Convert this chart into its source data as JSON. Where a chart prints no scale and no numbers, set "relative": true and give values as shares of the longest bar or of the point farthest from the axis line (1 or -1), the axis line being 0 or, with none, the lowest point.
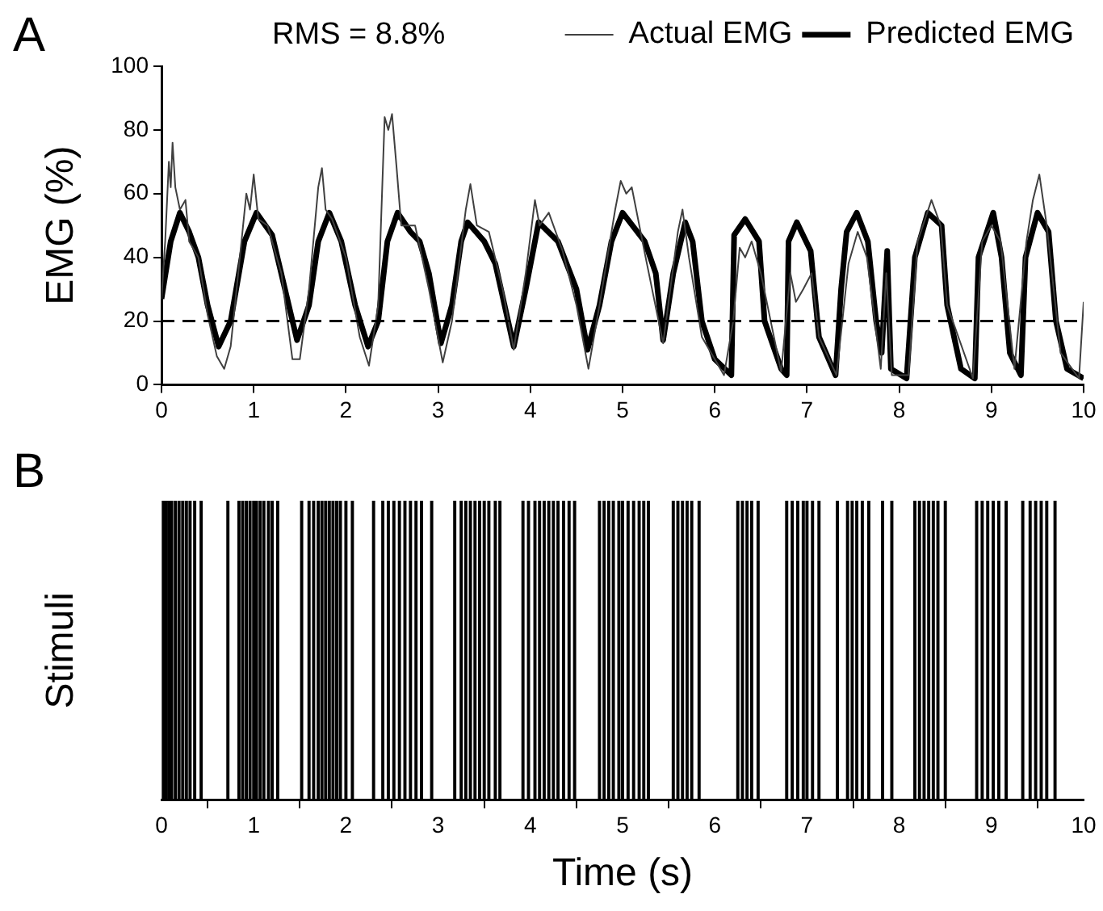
{
  "chart_data": [
    {
      "type": "line",
      "title": "A",
      "ylabel": "EMG (%)",
      "xlim": [
        0,
        10
      ],
      "xticks": [
        0,
        1,
        2,
        3,
        4,
        5,
        6,
        7,
        8,
        9,
        10
      ],
      "ylim": [
        0,
        100
      ],
      "yticks": [
        0,
        20,
        40,
        60,
        80,
        100
      ],
      "grid": false,
      "legend": "top right",
      "marker": "none",
      "line_style": "solid",
      "annotations": [
        "RMS = 8.8%"
      ],
      "ref_lines": [
        {
          "axis": "y",
          "value": 20,
          "color": "#000000",
          "line_style": "dashed"
        }
      ],
      "series": [
        {
          "name": "Actual EMG",
          "color": "#404040",
          "x": [
            0,
            0.04,
            0.08,
            0.1,
            0.12,
            0.15,
            0.2,
            0.26,
            0.3,
            0.4,
            0.5,
            0.6,
            0.68,
            0.75,
            0.85,
            0.92,
            0.96,
            1.0,
            1.05,
            1.15,
            1.3,
            1.42,
            1.5,
            1.6,
            1.7,
            1.74,
            1.78,
            1.85,
            2.0,
            2.15,
            2.25,
            2.35,
            2.42,
            2.46,
            2.5,
            2.55,
            2.6,
            2.75,
            2.9,
            3.05,
            3.15,
            3.3,
            3.35,
            3.42,
            3.55,
            3.7,
            3.82,
            3.95,
            4.05,
            4.1,
            4.2,
            4.35,
            4.5,
            4.63,
            4.75,
            4.92,
            4.98,
            5.04,
            5.1,
            5.25,
            5.44,
            5.6,
            5.65,
            5.72,
            5.86,
            6.1,
            6.2,
            6.27,
            6.33,
            6.4,
            6.5,
            6.72,
            6.82,
            6.88,
            6.96,
            7.05,
            7.13,
            7.32,
            7.45,
            7.55,
            7.65,
            7.8,
            7.86,
            7.92,
            8.1,
            8.2,
            8.35,
            8.45,
            8.52,
            8.8,
            8.9,
            9.0,
            9.1,
            9.25,
            9.38,
            9.45,
            9.52,
            9.6,
            9.75,
            9.95,
            10
          ],
          "values": [
            27,
            45,
            70,
            62,
            76,
            62,
            55,
            58,
            45,
            40,
            22,
            9,
            5,
            12,
            40,
            60,
            55,
            66,
            52,
            50,
            35,
            8,
            8,
            30,
            62,
            68,
            55,
            52,
            40,
            15,
            6,
            25,
            84,
            80,
            85,
            68,
            50,
            50,
            30,
            7,
            20,
            55,
            63,
            50,
            48,
            30,
            11,
            35,
            58,
            50,
            54,
            42,
            25,
            5,
            25,
            55,
            64,
            60,
            62,
            40,
            13,
            48,
            55,
            40,
            15,
            3,
            20,
            43,
            40,
            45,
            35,
            4,
            35,
            26,
            30,
            35,
            15,
            3,
            38,
            48,
            40,
            5,
            35,
            3,
            3,
            45,
            58,
            50,
            25,
            2,
            45,
            50,
            45,
            5,
            45,
            58,
            66,
            50,
            10,
            2,
            26
          ]
        },
        {
          "name": "Predicted EMG",
          "color": "#000000",
          "x": [
            0,
            0.1,
            0.2,
            0.3,
            0.4,
            0.5,
            0.62,
            0.75,
            0.9,
            1.03,
            1.2,
            1.38,
            1.47,
            1.6,
            1.7,
            1.82,
            1.95,
            2.1,
            2.24,
            2.35,
            2.45,
            2.56,
            2.7,
            2.8,
            2.9,
            3.03,
            3.15,
            3.25,
            3.32,
            3.5,
            3.62,
            3.82,
            3.95,
            4.09,
            4.3,
            4.5,
            4.62,
            4.75,
            4.88,
            5.0,
            5.24,
            5.36,
            5.44,
            5.55,
            5.68,
            5.76,
            5.86,
            6.0,
            6.18,
            6.21,
            6.33,
            6.48,
            6.54,
            6.72,
            6.78,
            6.8,
            6.89,
            7.04,
            7.13,
            7.31,
            7.37,
            7.43,
            7.54,
            7.66,
            7.75,
            7.81,
            7.87,
            7.91,
            8.08,
            8.17,
            8.31,
            8.46,
            8.52,
            8.67,
            8.82,
            8.86,
            9.02,
            9.11,
            9.2,
            9.32,
            9.37,
            9.5,
            9.62,
            9.7,
            9.82,
            10
          ],
          "values": [
            27,
            45,
            54,
            48,
            40,
            25,
            12,
            20,
            45,
            54,
            47,
            25,
            14,
            25,
            45,
            54,
            45,
            25,
            12,
            20,
            45,
            54,
            48,
            45,
            35,
            13,
            25,
            45,
            51,
            45,
            38,
            12,
            30,
            51,
            45,
            30,
            11,
            25,
            45,
            54,
            45,
            35,
            14,
            35,
            51,
            45,
            20,
            8,
            3,
            47,
            52,
            45,
            20,
            5,
            3,
            45,
            51,
            42,
            15,
            3,
            30,
            48,
            54,
            45,
            20,
            10,
            42,
            5,
            2,
            40,
            54,
            50,
            25,
            5,
            2,
            40,
            54,
            40,
            10,
            3,
            40,
            54,
            48,
            20,
            5,
            2
          ]
        }
      ]
    },
    {
      "type": "bar",
      "title": "B",
      "xlabel": "Time (s)",
      "ylabel": "Stimuli",
      "relative": true,
      "xlim": [
        0,
        10
      ],
      "xticks": [
        0,
        1,
        2,
        3,
        4,
        5,
        6,
        7,
        8,
        9,
        10
      ],
      "grid": false,
      "color": "#000000",
      "x": [
        0.02,
        0.05,
        0.08,
        0.11,
        0.15,
        0.19,
        0.23,
        0.27,
        0.31,
        0.36,
        0.43,
        0.72,
        0.84,
        0.88,
        0.92,
        0.96,
        1.0,
        1.03,
        1.07,
        1.11,
        1.16,
        1.2,
        1.26,
        1.52,
        1.6,
        1.65,
        1.7,
        1.74,
        1.78,
        1.82,
        1.86,
        1.9,
        1.94,
        2.0,
        2.07,
        2.3,
        2.4,
        2.46,
        2.52,
        2.58,
        2.64,
        2.7,
        2.76,
        2.82,
        2.93,
        3.18,
        3.25,
        3.3,
        3.35,
        3.4,
        3.45,
        3.5,
        3.55,
        3.62,
        3.67,
        3.92,
        3.98,
        4.05,
        4.1,
        4.15,
        4.2,
        4.25,
        4.3,
        4.36,
        4.42,
        4.48,
        4.75,
        4.8,
        4.85,
        4.9,
        4.96,
        5.0,
        5.06,
        5.12,
        5.18,
        5.23,
        5.28,
        5.55,
        5.6,
        5.65,
        5.7,
        5.75,
        5.83,
        6.25,
        6.3,
        6.35,
        6.4,
        6.47,
        6.78,
        6.84,
        6.9,
        6.96,
        7.0,
        7.06,
        7.13,
        7.33,
        7.44,
        7.49,
        7.54,
        7.6,
        7.67,
        7.82,
        7.92,
        8.17,
        8.22,
        8.27,
        8.32,
        8.37,
        8.42,
        8.5,
        8.84,
        8.9,
        8.96,
        9.02,
        9.08,
        9.16,
        9.34,
        9.42,
        9.48,
        9.54,
        9.6,
        9.69
      ],
      "values": [
        1,
        1,
        1,
        1,
        1,
        1,
        1,
        1,
        1,
        1,
        1,
        1,
        1,
        1,
        1,
        1,
        1,
        1,
        1,
        1,
        1,
        1,
        1,
        1,
        1,
        1,
        1,
        1,
        1,
        1,
        1,
        1,
        1,
        1,
        1,
        1,
        1,
        1,
        1,
        1,
        1,
        1,
        1,
        1,
        1,
        1,
        1,
        1,
        1,
        1,
        1,
        1,
        1,
        1,
        1,
        1,
        1,
        1,
        1,
        1,
        1,
        1,
        1,
        1,
        1,
        1,
        1,
        1,
        1,
        1,
        1,
        1,
        1,
        1,
        1,
        1,
        1,
        1,
        1,
        1,
        1,
        1,
        1,
        1,
        1,
        1,
        1,
        1,
        1,
        1,
        1,
        1,
        1,
        1,
        1,
        1,
        1,
        1,
        1,
        1,
        1,
        1,
        1,
        1,
        1,
        1,
        1,
        1,
        1,
        1,
        1,
        1,
        1,
        1,
        1,
        1,
        1,
        1,
        1,
        1,
        1,
        1
      ]
    }
  ]
}
